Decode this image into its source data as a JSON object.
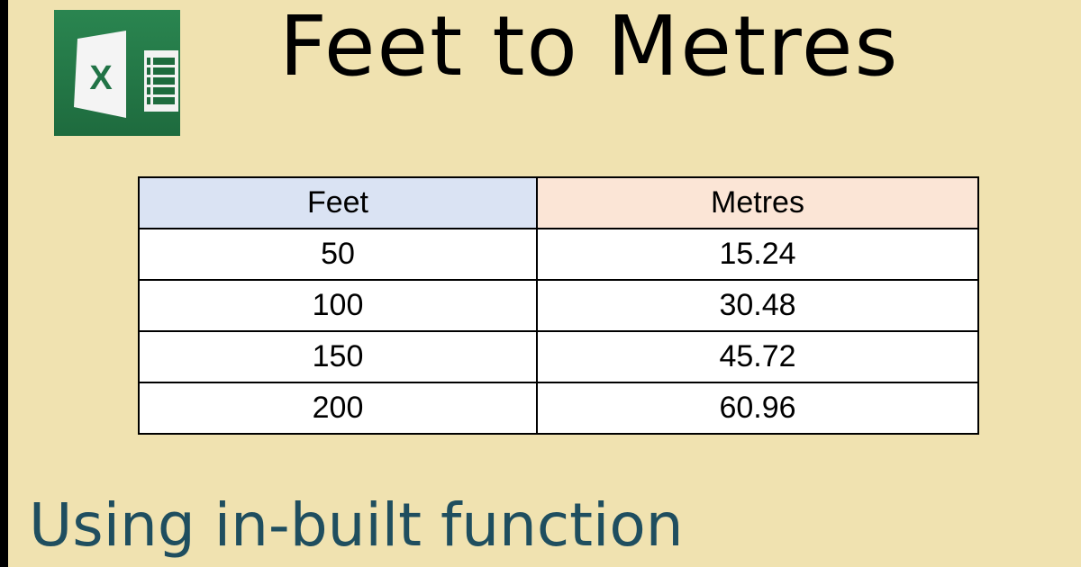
{
  "title": "Feet to Metres",
  "logo": {
    "icon": "excel-icon",
    "letter": "X",
    "color": "#217346"
  },
  "table": {
    "headers": [
      "Feet",
      "Metres"
    ],
    "header_colors": [
      "#dae3f3",
      "#fbe5d6"
    ],
    "rows": [
      [
        "50",
        "15.24"
      ],
      [
        "100",
        "30.48"
      ],
      [
        "150",
        "45.72"
      ],
      [
        "200",
        "60.96"
      ]
    ]
  },
  "subtitle": "Using in-built function"
}
